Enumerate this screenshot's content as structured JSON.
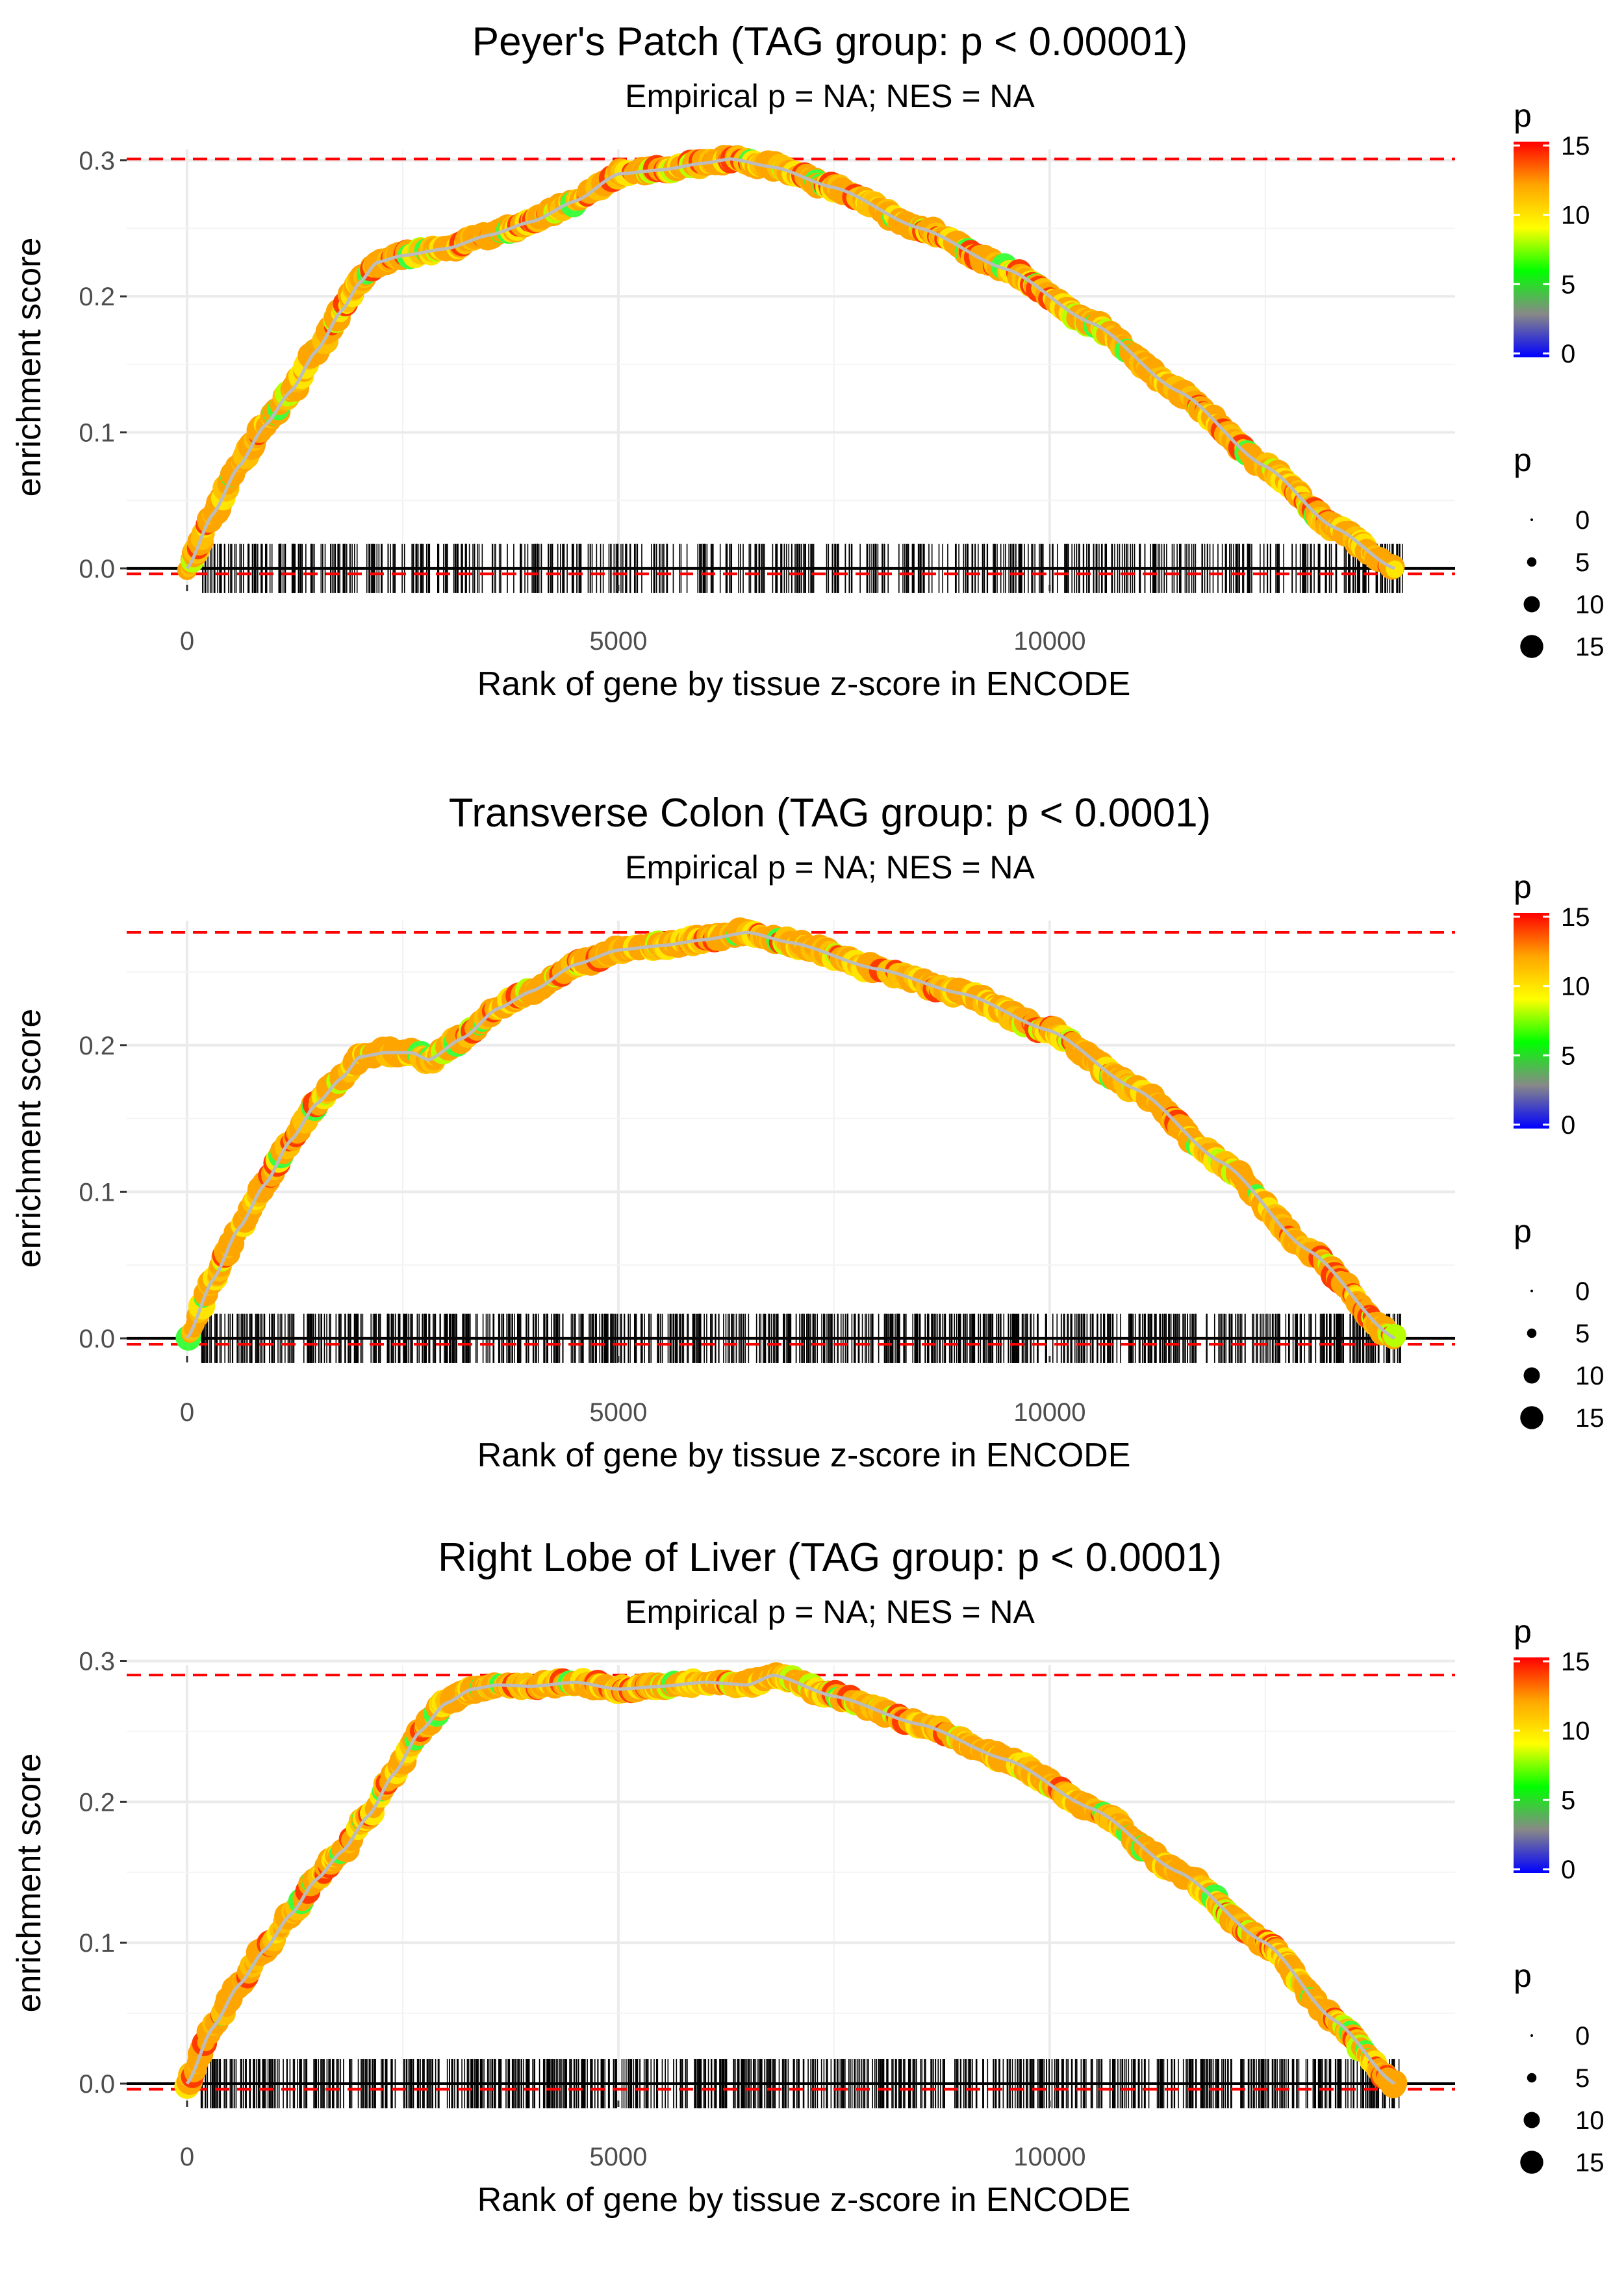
{
  "chart_data": [
    {
      "type": "line",
      "title": "Peyer's Patch (TAG group: p < 0.00001)",
      "subtitle": "Empirical p = NA; NES = NA",
      "xlabel": "Rank of gene by tissue z-score in ENCODE",
      "ylabel": "enrichment score",
      "xlim": [
        -700,
        14700
      ],
      "ylim": [
        -0.012,
        0.308
      ],
      "x_ticks": [
        0,
        5000,
        10000
      ],
      "x_tick_labels": [
        "0",
        "5000",
        "10000"
      ],
      "y_ticks": [
        0.0,
        0.1,
        0.2,
        0.3
      ],
      "y_tick_labels": [
        "0.0",
        "0.1",
        "0.2",
        "0.3"
      ],
      "max_es_line": 0.301,
      "min_es_line": -0.004,
      "series": [
        {
          "name": "enrichment score",
          "x": [
            0,
            300,
            600,
            900,
            1200,
            1500,
            1800,
            2000,
            2200,
            2500,
            3000,
            3500,
            4000,
            4500,
            5000,
            5500,
            6000,
            6300,
            6800,
            7500,
            8500,
            9500,
            10500,
            11500,
            12500,
            13300,
            14000
          ],
          "y": [
            0.0,
            0.04,
            0.075,
            0.105,
            0.13,
            0.16,
            0.19,
            0.21,
            0.225,
            0.23,
            0.235,
            0.245,
            0.255,
            0.27,
            0.29,
            0.293,
            0.298,
            0.301,
            0.295,
            0.28,
            0.25,
            0.22,
            0.18,
            0.13,
            0.075,
            0.03,
            0.0
          ]
        }
      ],
      "rug": {
        "x_start": 150,
        "x_end": 14100,
        "count": 620
      }
    },
    {
      "type": "line",
      "title": "Transverse Colon (TAG group: p < 0.0001)",
      "subtitle": "Empirical p = NA; NES = NA",
      "xlabel": "Rank of gene by tissue z-score in ENCODE",
      "ylabel": "enrichment score",
      "xlim": [
        -700,
        14700
      ],
      "ylim": [
        -0.012,
        0.285
      ],
      "x_ticks": [
        0,
        5000,
        10000
      ],
      "x_tick_labels": [
        "0",
        "5000",
        "10000"
      ],
      "y_ticks": [
        0.0,
        0.1,
        0.2
      ],
      "y_tick_labels": [
        "0.0",
        "0.1",
        "0.2"
      ],
      "max_es_line": 0.277,
      "min_es_line": -0.004,
      "series": [
        {
          "name": "enrichment score",
          "x": [
            0,
            300,
            600,
            900,
            1200,
            1500,
            1800,
            2000,
            2300,
            2600,
            2800,
            3200,
            3600,
            4000,
            4500,
            5000,
            5500,
            6000,
            6500,
            7000,
            8000,
            9000,
            10000,
            11000,
            12000,
            13000,
            14000
          ],
          "y": [
            0.0,
            0.04,
            0.075,
            0.105,
            0.135,
            0.16,
            0.178,
            0.192,
            0.195,
            0.195,
            0.19,
            0.205,
            0.225,
            0.237,
            0.255,
            0.265,
            0.268,
            0.272,
            0.277,
            0.27,
            0.252,
            0.235,
            0.21,
            0.17,
            0.12,
            0.06,
            0.0
          ]
        }
      ],
      "rug": {
        "x_start": 150,
        "x_end": 14100,
        "count": 820
      }
    },
    {
      "type": "line",
      "title": "Right Lobe of Liver (TAG group: p < 0.0001)",
      "subtitle": "Empirical p = NA; NES = NA",
      "xlabel": "Rank of gene by tissue z-score in ENCODE",
      "ylabel": "enrichment score",
      "xlim": [
        -700,
        14700
      ],
      "ylim": [
        -0.012,
        0.297
      ],
      "x_ticks": [
        0,
        5000,
        10000
      ],
      "x_tick_labels": [
        "0",
        "5000",
        "10000"
      ],
      "y_ticks": [
        0.0,
        0.1,
        0.2,
        0.3
      ],
      "y_tick_labels": [
        "0.0",
        "0.1",
        "0.2",
        "0.3"
      ],
      "max_es_line": 0.29,
      "min_es_line": -0.004,
      "series": [
        {
          "name": "enrichment score",
          "x": [
            0,
            300,
            600,
            900,
            1200,
            1500,
            1800,
            2100,
            2400,
            2700,
            3000,
            3300,
            3600,
            4000,
            4500,
            5000,
            5500,
            6000,
            6500,
            6800,
            7500,
            8500,
            9500,
            10500,
            11500,
            12500,
            13300,
            14000
          ],
          "y": [
            0.0,
            0.04,
            0.07,
            0.095,
            0.12,
            0.145,
            0.165,
            0.19,
            0.22,
            0.25,
            0.27,
            0.28,
            0.283,
            0.282,
            0.285,
            0.28,
            0.282,
            0.285,
            0.283,
            0.29,
            0.275,
            0.255,
            0.23,
            0.195,
            0.15,
            0.1,
            0.045,
            0.0
          ]
        }
      ],
      "rug": {
        "x_start": 150,
        "x_end": 14050,
        "count": 860
      }
    }
  ],
  "legends": {
    "color": {
      "title": "p",
      "labels": [
        "15",
        "10",
        "5",
        "0"
      ],
      "values": [
        15,
        10,
        5,
        0
      ],
      "colors": [
        "#0000ff",
        "#888888",
        "#00ff00",
        "#ffff00",
        "#ffa500",
        "#ff0000"
      ]
    },
    "size": {
      "title": "p",
      "labels": [
        "0",
        "5",
        "10",
        "15"
      ],
      "values": [
        0,
        5,
        10,
        15
      ]
    }
  }
}
